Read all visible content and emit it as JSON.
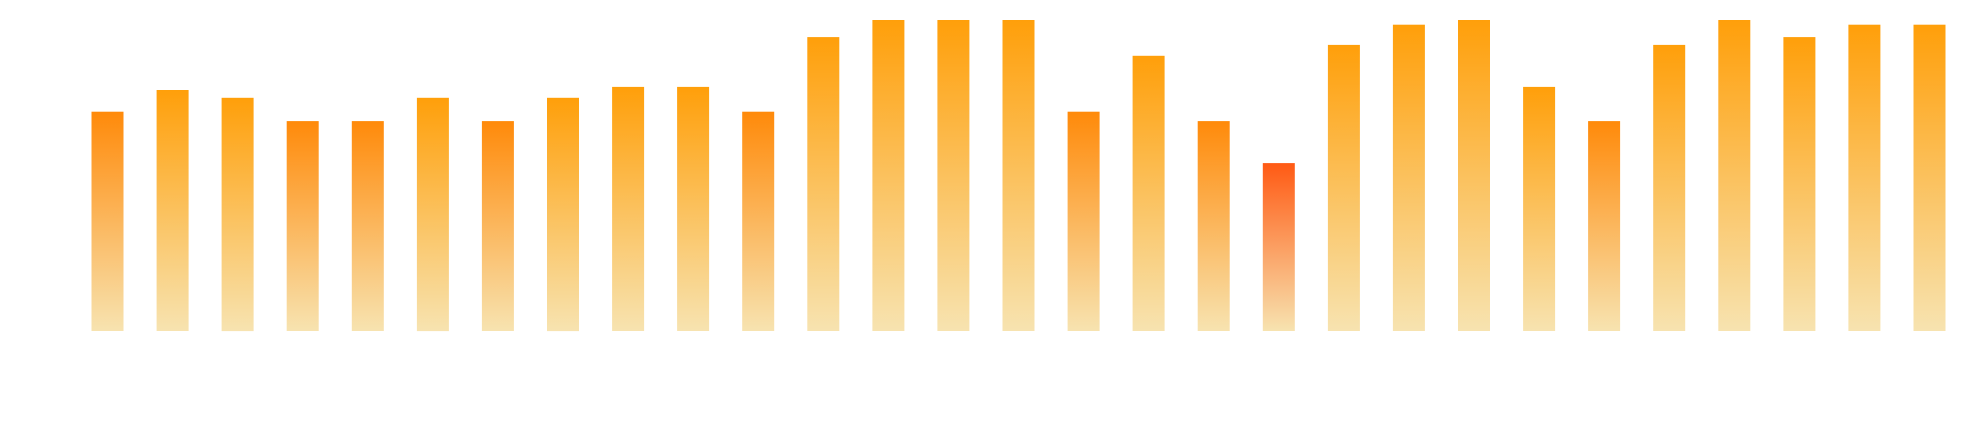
{
  "chart_data": {
    "type": "bar",
    "title": "",
    "xlabel": "",
    "ylabel": "",
    "grid": false,
    "legend": "none",
    "ylim": [
      0,
      100
    ],
    "series": [
      {
        "values": [
          70.5,
          77.5,
          75,
          67.5,
          67.5,
          75,
          67.5,
          75,
          78.5,
          78.5,
          70.5,
          94.5,
          100,
          100,
          100,
          70.5,
          88.5,
          67.5,
          54,
          92,
          98.5,
          100,
          78.5,
          67.5,
          92,
          100,
          94.5,
          98.5,
          98.5
        ]
      }
    ],
    "colors": {
      "top_normal": "#FF9F0A",
      "top_mid": "#FF8A0A",
      "top_low": "#FF5A14",
      "bottom": "#F7E3B0"
    }
  }
}
